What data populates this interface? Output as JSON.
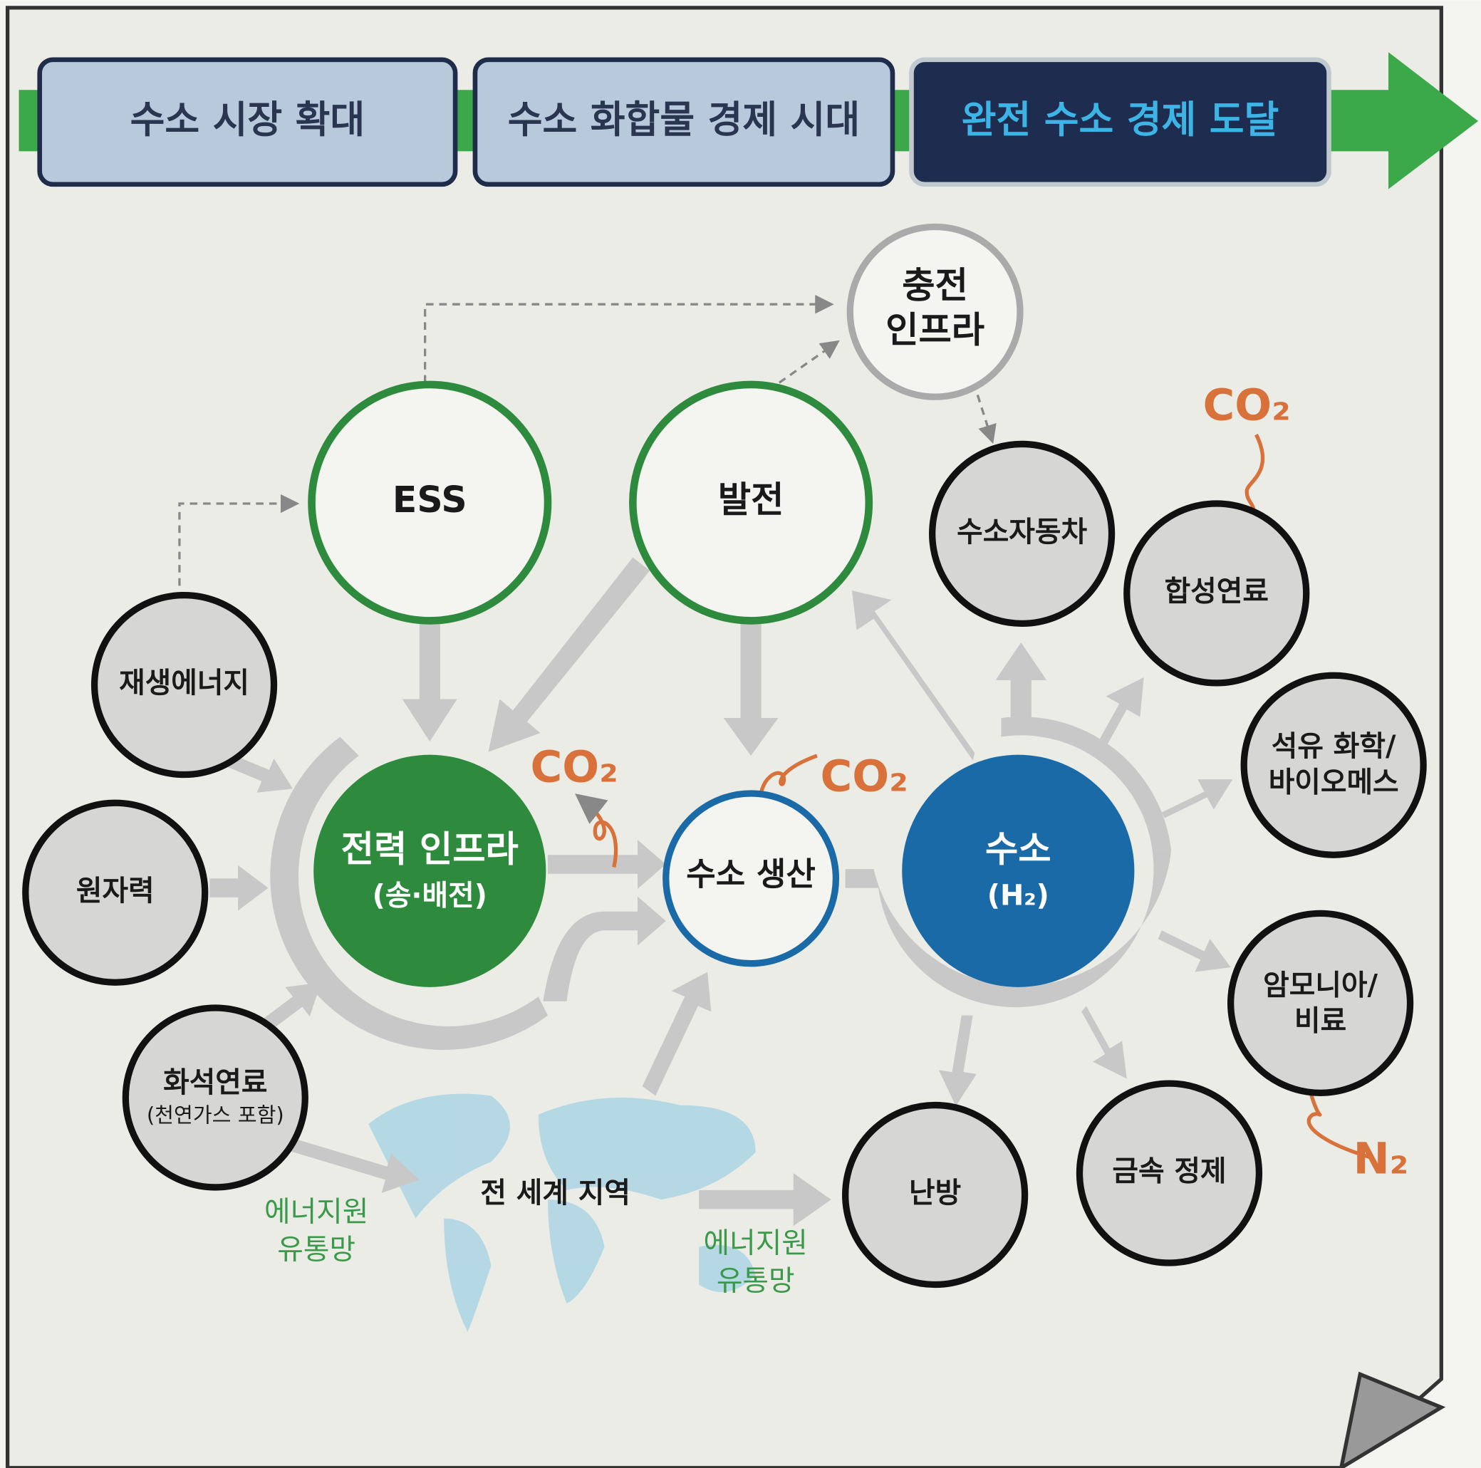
{
  "stages": [
    "수소 시장 확대",
    "수소 화합물 경제 시대",
    "완전 수소 경제 도달"
  ],
  "nodes": [
    {
      "lines": [
        "충전",
        "인프라"
      ]
    },
    {
      "lines": [
        "ESS"
      ]
    },
    {
      "lines": [
        "발전"
      ]
    },
    {
      "lines": [
        "수소자동차"
      ]
    },
    {
      "lines": [
        "합성연료"
      ]
    },
    {
      "lines": [
        "석유 화학/",
        "바이오메스"
      ]
    },
    {
      "lines": [
        "암모니아/",
        "비료"
      ]
    },
    {
      "lines": [
        "금속 정제"
      ]
    },
    {
      "lines": [
        "난방"
      ]
    },
    {
      "lines": [
        "재생에너지"
      ]
    },
    {
      "lines": [
        "원자력"
      ]
    },
    {
      "lines": [
        "화석연료",
        "(천연가스 포함)"
      ]
    },
    {
      "lines": [
        "전력 인프라",
        "(송·배전)"
      ]
    },
    {
      "lines": [
        "수소 생산"
      ]
    },
    {
      "lines": [
        "수소",
        "(H₂)"
      ]
    },
    {
      "lines": [
        "전 세계 지역"
      ]
    }
  ],
  "gases": [
    "CO₂",
    "CO₂",
    "CO₂",
    "N₂"
  ],
  "networks": [
    {
      "lines": [
        "에너지원",
        "유통망"
      ]
    },
    {
      "lines": [
        "에너지원",
        "유통망"
      ]
    }
  ]
}
